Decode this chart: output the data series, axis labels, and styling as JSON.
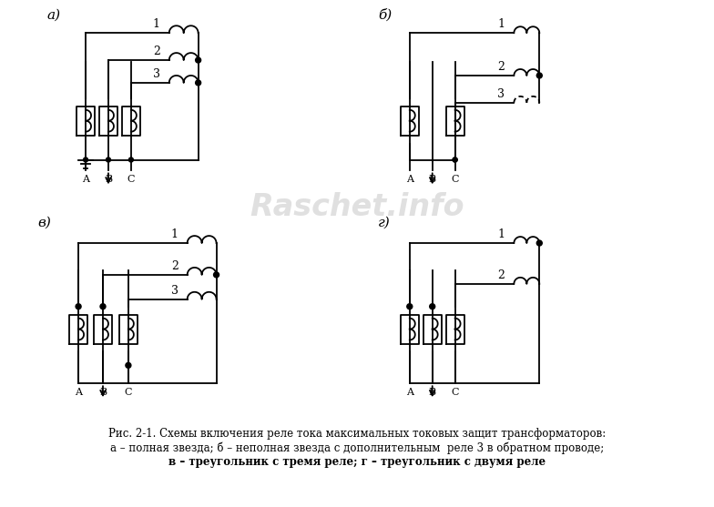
{
  "bg_color": "#ffffff",
  "line_color": "#000000",
  "fig_width": 7.84,
  "fig_height": 5.57,
  "dpi": 100,
  "caption_line1": "Рис. 2-1. Схемы включения реле тока максимальных токовых защит трансформаторов:",
  "caption_line2": "а – полная звезда; б – неполная звезда с дополнительным  реле 3 в обратном проводе;",
  "caption_line3": "в – треугольник с тремя реле; г – треугольник с двумя реле",
  "watermark": "Raschet.info",
  "watermark_color": "#cccccc",
  "label_a": "а)",
  "label_b": "б)",
  "label_v": "в)",
  "label_g": "г)"
}
